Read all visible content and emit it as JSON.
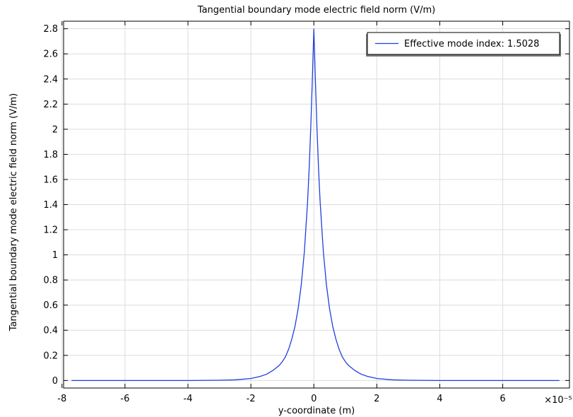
{
  "chart_data": {
    "type": "line",
    "title": "Tangential boundary mode electric field norm (V/m)",
    "xlabel": "y-coordinate (m)",
    "ylabel": "Tangential boundary mode electric field norm (V/m)",
    "x_multiplier": "×10⁻⁵",
    "xlim": [
      -7.95,
      8.12
    ],
    "ylim": [
      -0.06,
      2.86
    ],
    "xticks": [
      -8,
      -6,
      -4,
      -2,
      0,
      2,
      4,
      6
    ],
    "xtick_labels": [
      "-8",
      "-6",
      "-4",
      "-2",
      "0",
      "2",
      "4",
      "6"
    ],
    "yticks": [
      0,
      0.2,
      0.4,
      0.6,
      0.8,
      1,
      1.2,
      1.4,
      1.6,
      1.8,
      2,
      2.2,
      2.4,
      2.6,
      2.8
    ],
    "ytick_labels": [
      "0",
      "0.2",
      "0.4",
      "0.6",
      "0.8",
      "1",
      "1.2",
      "1.4",
      "1.6",
      "1.8",
      "2",
      "2.2",
      "2.4",
      "2.6",
      "2.8"
    ],
    "grid": true,
    "legend_position": "top-right",
    "series": [
      {
        "name": "Effective mode index: 1.5028",
        "color": "#1f3fdf",
        "x": [
          -7.7,
          -6,
          -4,
          -3,
          -2.5,
          -2,
          -1.7,
          -1.5,
          -1.3,
          -1.1,
          -1.0,
          -0.9,
          -0.8,
          -0.7,
          -0.6,
          -0.5,
          -0.4,
          -0.3,
          -0.2,
          -0.15,
          -0.1,
          -0.05,
          0,
          0.05,
          0.1,
          0.15,
          0.2,
          0.3,
          0.4,
          0.5,
          0.6,
          0.7,
          0.8,
          0.9,
          1.0,
          1.1,
          1.3,
          1.5,
          1.7,
          2,
          2.5,
          3,
          4,
          6,
          7.8
        ],
        "y": [
          0,
          0,
          0,
          0.002,
          0.005,
          0.016,
          0.033,
          0.05,
          0.08,
          0.12,
          0.15,
          0.19,
          0.25,
          0.33,
          0.43,
          0.57,
          0.76,
          1.03,
          1.42,
          1.68,
          2.0,
          2.38,
          2.8,
          2.38,
          2.0,
          1.68,
          1.42,
          1.03,
          0.76,
          0.57,
          0.43,
          0.33,
          0.25,
          0.19,
          0.15,
          0.12,
          0.08,
          0.05,
          0.033,
          0.016,
          0.005,
          0.002,
          0,
          0,
          0
        ]
      }
    ]
  }
}
